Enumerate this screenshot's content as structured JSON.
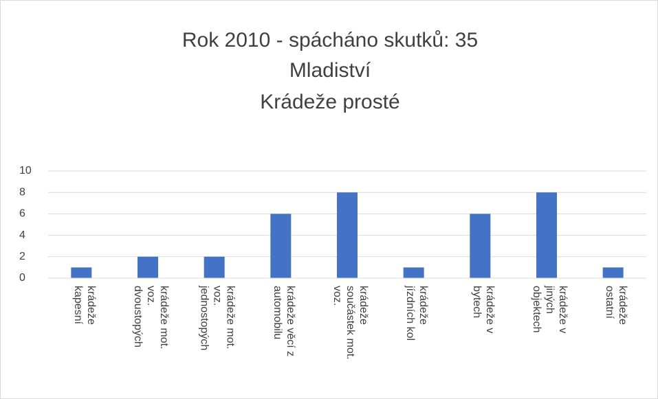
{
  "chart_data": {
    "type": "bar",
    "title": [
      "Rok 2010 - spácháno skutků: 35",
      "Mladiství",
      "Krádeže prosté"
    ],
    "categories": [
      "krádeže kapesní",
      "krádeže mot. voz. dvoustopých",
      "krádeže mot. voz. jednostopých",
      "krádeže věcí z automobilu",
      "krádeže součástek mot. voz.",
      "krádeže jízdních kol",
      "krádeže v bytech",
      "krádeže v jiných objektech",
      "krádeže ostatní"
    ],
    "values": [
      1,
      2,
      2,
      6,
      8,
      1,
      6,
      8,
      1
    ],
    "color": "#4472c4",
    "ylim": [
      0,
      10
    ],
    "yticks": [
      0,
      2,
      4,
      6,
      8,
      10
    ],
    "grid": true
  }
}
